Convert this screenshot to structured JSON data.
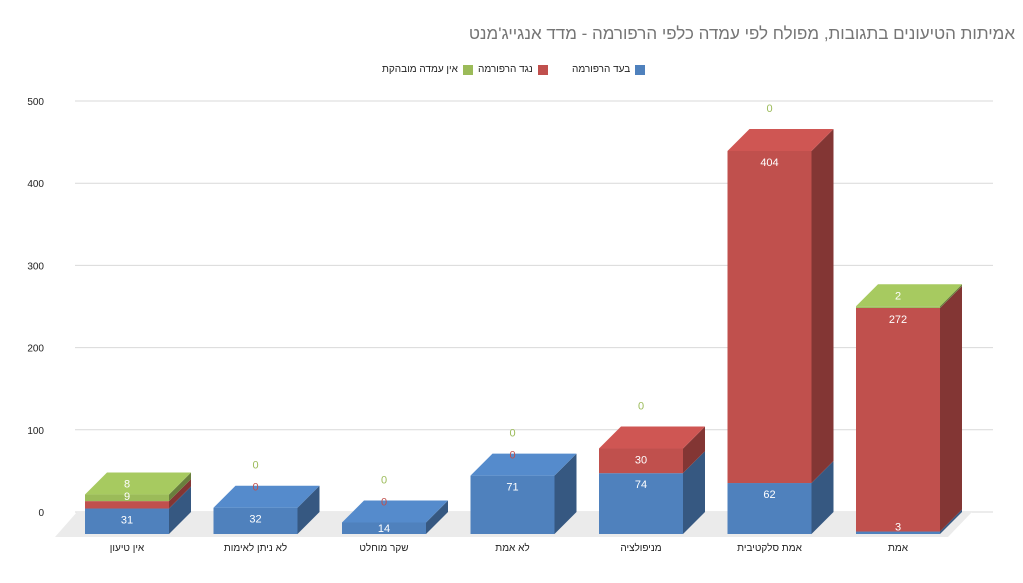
{
  "chart_data": {
    "type": "bar",
    "stacked": true,
    "three_d": true,
    "title": "אמיתות הטיעונים בתגובות, מפולח לפי עמדה כלפי הרפורמה - מדד אנגייג'מנט",
    "categories": [
      "אין טיעון",
      "לא ניתן לאימות",
      "שקר מוחלט",
      "לא אמת",
      "מניפולציה",
      "אמת סלקטיבית",
      "אמת"
    ],
    "series": [
      {
        "name": "בעד הרפורמה",
        "color": "#4F81BD",
        "values": [
          31,
          32,
          14,
          71,
          74,
          62,
          3
        ]
      },
      {
        "name": "נגד הרפורמה",
        "color": "#C0504D",
        "values": [
          9,
          0,
          0,
          0,
          30,
          404,
          272
        ]
      },
      {
        "name": "אין עמדה מובהקת",
        "color": "#9BBB59",
        "values": [
          8,
          0,
          0,
          0,
          0,
          0,
          2
        ]
      }
    ],
    "y_ticks": [
      "0",
      "100",
      "200",
      "300",
      "400",
      "500"
    ],
    "ylim": [
      0,
      500
    ],
    "grid": true,
    "legend_position": "top"
  }
}
